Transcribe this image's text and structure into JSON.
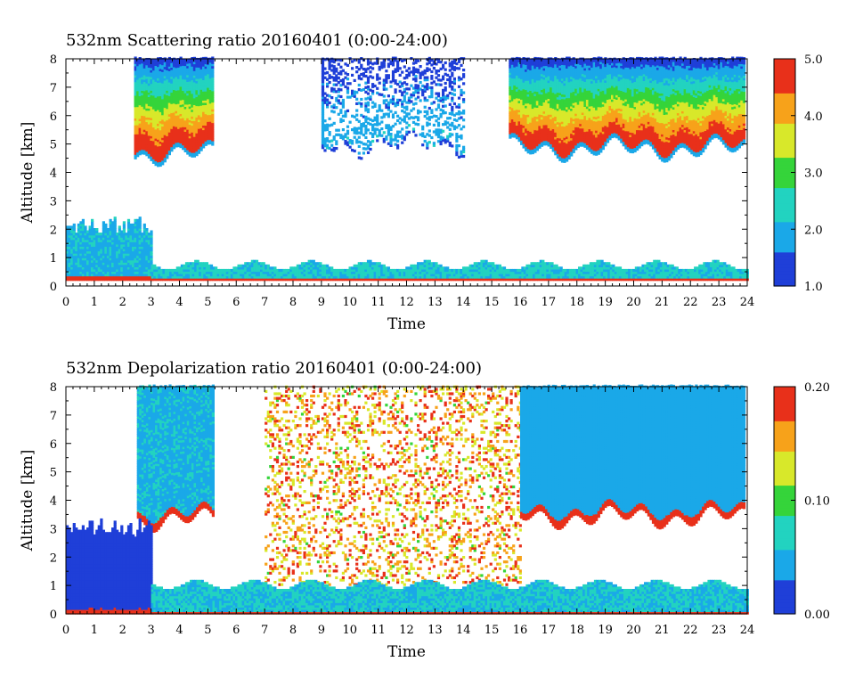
{
  "chart_data": [
    {
      "type": "heatmap",
      "title": "532nm Scattering ratio  20160401 (0:00-24:00)",
      "xlabel": "Time",
      "ylabel": "Altitude [km]",
      "xlim": [
        0,
        24
      ],
      "ylim": [
        0,
        8
      ],
      "x_ticks": [
        "0",
        "1",
        "2",
        "3",
        "4",
        "5",
        "6",
        "7",
        "8",
        "9",
        "10",
        "11",
        "12",
        "13",
        "14",
        "15",
        "16",
        "17",
        "18",
        "19",
        "20",
        "21",
        "22",
        "23",
        "24"
      ],
      "y_ticks": [
        "0",
        "1",
        "2",
        "3",
        "4",
        "5",
        "6",
        "7",
        "8"
      ],
      "colorbar": {
        "range": [
          1.0,
          5.0
        ],
        "ticks": [
          "1.0",
          "2.0",
          "3.0",
          "4.0",
          "5.0"
        ]
      },
      "colors": [
        "#1f3fd8",
        "#1aa8e8",
        "#22d3c0",
        "#35d43a",
        "#d8e82a",
        "#f7a21a",
        "#e8301a"
      ],
      "features": [
        {
          "kind": "cloud",
          "x": [
            2.4,
            5.2
          ],
          "alt_base": 4.6,
          "alt_top": 8.0,
          "peak": 4.8
        },
        {
          "kind": "cloud",
          "x": [
            9.0,
            14.0
          ],
          "alt_base": 4.9,
          "alt_top": 8.0,
          "peak": 1.8
        },
        {
          "kind": "cloud",
          "x": [
            15.6,
            23.9
          ],
          "alt_base": 4.8,
          "alt_top": 8.0,
          "peak": 4.7
        },
        {
          "kind": "aerosol",
          "x": [
            0.0,
            3.0
          ],
          "alt_base": 0.2,
          "alt_top": 2.4,
          "peak": 2.2
        },
        {
          "kind": "boundary_layer",
          "x": [
            3.0,
            24.0
          ],
          "alt_base": 0.2,
          "alt_top": 0.7,
          "peak": 2.5
        }
      ]
    },
    {
      "type": "heatmap",
      "title": "532nm Depolarization ratio  20160401 (0:00-24:00)",
      "xlabel": "Time",
      "ylabel": "Altitude [km]",
      "xlim": [
        0,
        24
      ],
      "ylim": [
        0,
        8
      ],
      "x_ticks": [
        "0",
        "1",
        "2",
        "3",
        "4",
        "5",
        "6",
        "7",
        "8",
        "9",
        "10",
        "11",
        "12",
        "13",
        "14",
        "15",
        "16",
        "17",
        "18",
        "19",
        "20",
        "21",
        "22",
        "23",
        "24"
      ],
      "y_ticks": [
        "0",
        "1",
        "2",
        "3",
        "4",
        "5",
        "6",
        "7",
        "8"
      ],
      "colorbar": {
        "range": [
          0.0,
          0.2
        ],
        "ticks": [
          "0.00",
          "0.10",
          "0.20"
        ]
      },
      "colors": [
        "#1f3fd8",
        "#1aa8e8",
        "#22d3c0",
        "#35d43a",
        "#d8e82a",
        "#f7a21a",
        "#e8301a"
      ],
      "features": [
        {
          "kind": "cloud",
          "x": [
            2.5,
            5.2
          ],
          "alt_base": 3.3,
          "alt_top": 8.0,
          "peak": 0.06
        },
        {
          "kind": "noise",
          "x": [
            7.0,
            16.0
          ],
          "alt_base": 1.0,
          "alt_top": 8.0,
          "peak": 0.16
        },
        {
          "kind": "cloud",
          "x": [
            16.0,
            23.9
          ],
          "alt_base": 3.4,
          "alt_top": 8.0,
          "peak": 0.05
        },
        {
          "kind": "aerosol",
          "x": [
            0.0,
            3.0
          ],
          "alt_base": 0.0,
          "alt_top": 3.3,
          "peak": 0.02
        },
        {
          "kind": "boundary_layer",
          "x": [
            3.0,
            24.0
          ],
          "alt_base": 0.0,
          "alt_top": 1.0,
          "peak": 0.07
        }
      ]
    }
  ]
}
